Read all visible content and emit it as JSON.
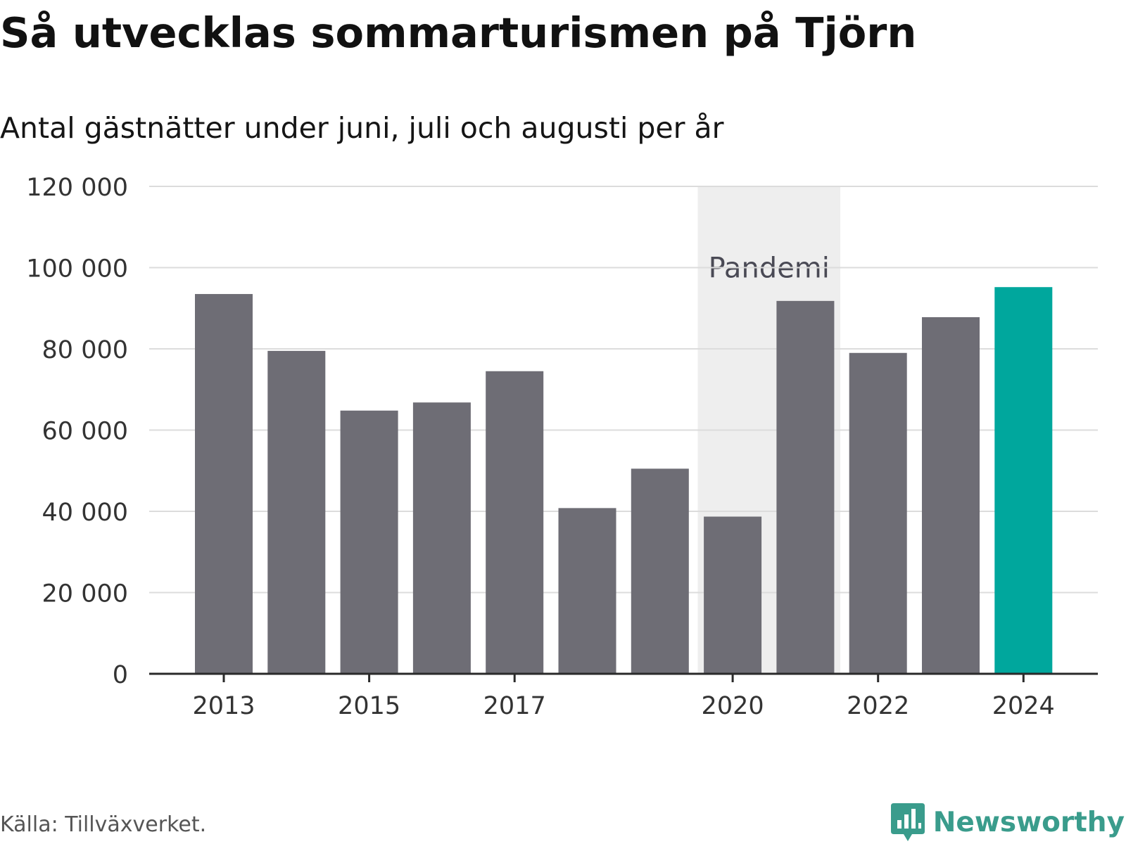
{
  "colors": {
    "bar": "#6e6d75",
    "highlight": "#00a79d",
    "grid": "#dcdcdc",
    "axis": "#2a2a2a",
    "shade": "#eeeeee",
    "annotation": "#4a4a55",
    "brand": "#3a9c8c"
  },
  "chart_data": {
    "type": "bar",
    "title": "Så utvecklas sommarturismen på Tjörn",
    "subtitle": "Antal gästnätter under juni, juli och augusti per år",
    "categories": [
      "2013",
      "2014",
      "2015",
      "2016",
      "2017",
      "2018",
      "2019",
      "2020",
      "2021",
      "2022",
      "2023",
      "2024"
    ],
    "values": [
      93500,
      79500,
      64800,
      66800,
      74500,
      40800,
      50500,
      38700,
      91800,
      79000,
      87800,
      95200
    ],
    "highlight_category": "2024",
    "x_tick_labels": [
      "2013",
      "2015",
      "2017",
      "2020",
      "2022",
      "2024"
    ],
    "y_ticks": [
      0,
      20000,
      40000,
      60000,
      80000,
      100000,
      120000
    ],
    "y_tick_labels": [
      "0",
      "20 000",
      "40 000",
      "60 000",
      "80 000",
      "100 000",
      "120 000"
    ],
    "ylim": [
      0,
      120000
    ],
    "grid": true,
    "annotation": {
      "label": "Pandemi",
      "from": "2020",
      "to": "2021"
    }
  },
  "footer": {
    "source": "Källa: Tillväxverket.",
    "brand": "Newsworthy",
    "brand_icon": "bar-chart-speech-bubble-icon"
  }
}
